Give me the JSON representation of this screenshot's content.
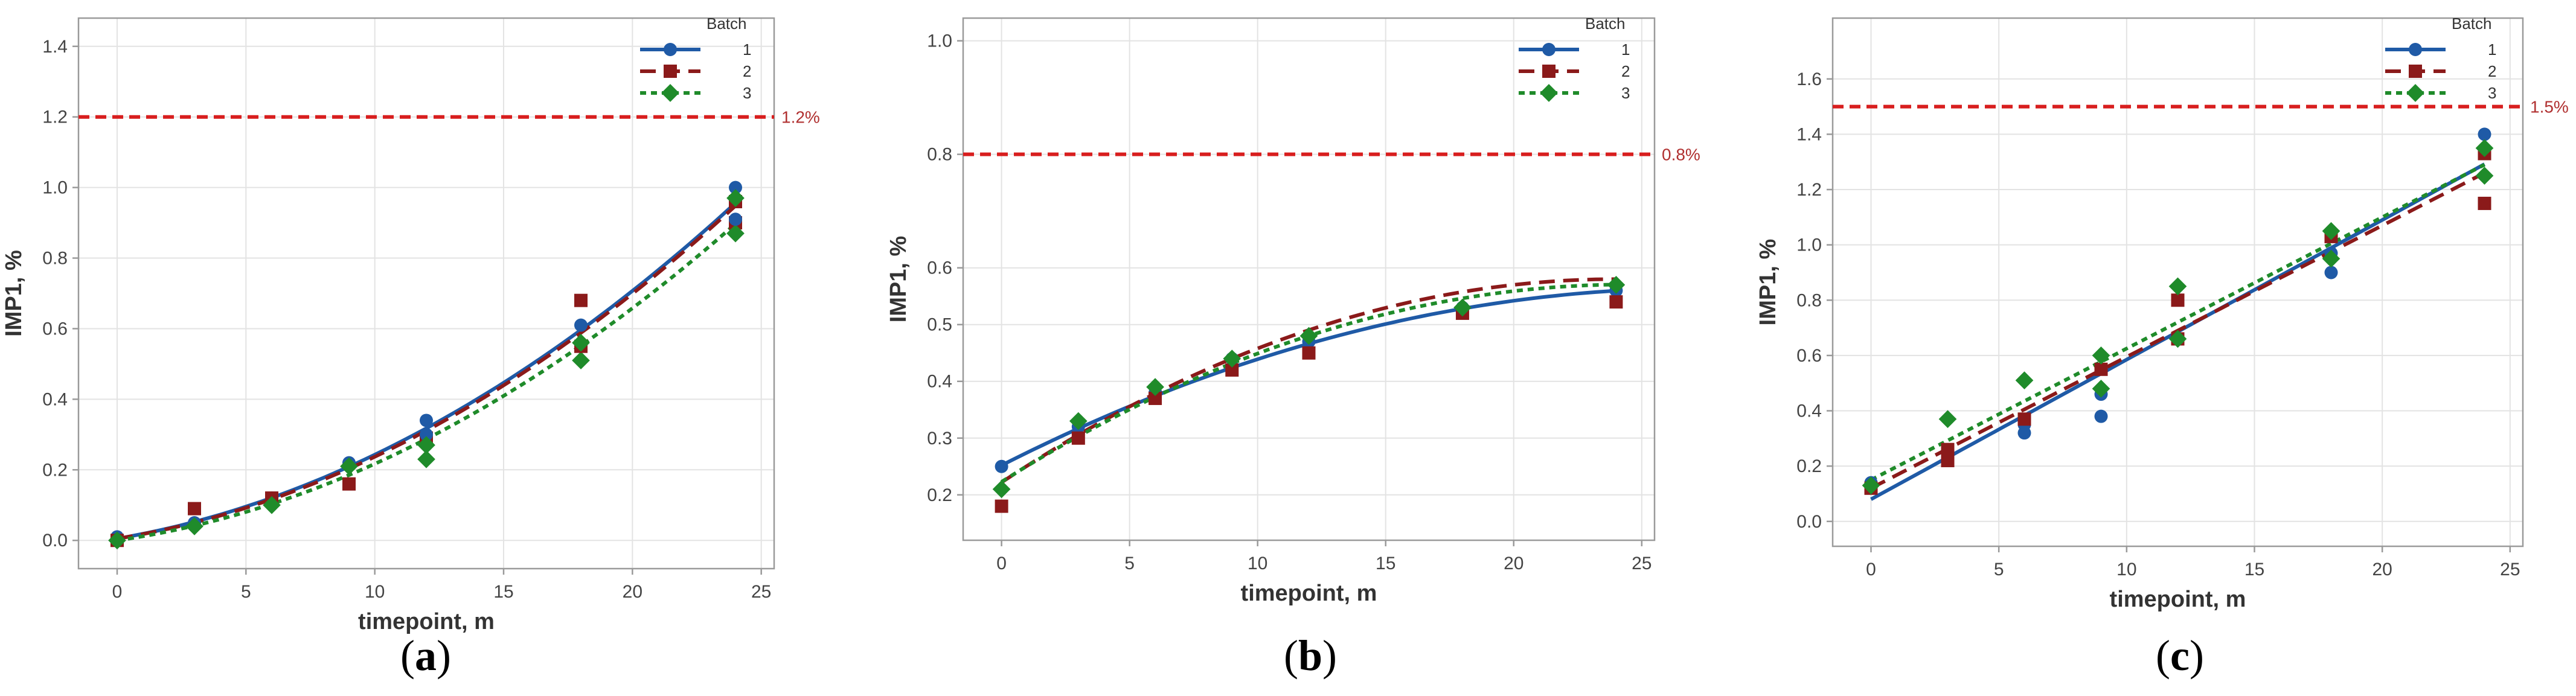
{
  "colors": {
    "series": [
      "#1f5aa6",
      "#8b1a1a",
      "#1f8b2a"
    ],
    "limit": "#d81e1e",
    "limit_label": "#b03030",
    "grid": "#e3e3e3",
    "frame": "#9a9a9a",
    "axis_text": "#444444"
  },
  "chart_data": [
    {
      "id": "a",
      "type": "scatter",
      "caption": "a",
      "xlabel": "timepoint, m",
      "ylabel": "IMP1, %",
      "xlim": [
        -1.5,
        25.5
      ],
      "ylim": [
        -0.08,
        1.48
      ],
      "xticks": [
        0,
        5,
        10,
        15,
        20,
        25
      ],
      "xtick_labels": [
        "0",
        "5",
        "10",
        "15",
        "20",
        "25"
      ],
      "yticks": [
        0.0,
        0.2,
        0.4,
        0.6,
        0.8,
        1.0,
        1.2,
        1.4
      ],
      "ytick_labels": [
        "0.0",
        "0.2",
        "0.4",
        "0.6",
        "0.8",
        "1.0",
        "1.2",
        "1.4"
      ],
      "limit": {
        "value": 1.2,
        "label": "1.2%"
      },
      "legend": {
        "title": "Batch",
        "position": "top-right"
      },
      "fit": "quadratic",
      "series": [
        {
          "name": "1",
          "marker": "circle",
          "line": "solid",
          "x": [
            0,
            3,
            6,
            9,
            12,
            18,
            24
          ],
          "y": [
            0.01,
            0.05,
            0.12,
            0.22,
            0.34,
            0.61,
            1.0
          ],
          "fit_coef": [
            0.005,
            0.0125,
            0.00113
          ]
        },
        {
          "name": "2",
          "marker": "square",
          "line": "dashed",
          "x": [
            0,
            3,
            6,
            9,
            12,
            18,
            24
          ],
          "y": [
            0.0,
            0.09,
            0.12,
            0.16,
            0.29,
            0.68,
            0.9
          ],
          "fit_coef": [
            0.005,
            0.0117,
            0.00115
          ]
        },
        {
          "name": "3",
          "marker": "diamond",
          "line": "dotted",
          "x": [
            0,
            3,
            6,
            9,
            12,
            18,
            24
          ],
          "y": [
            0.0,
            0.04,
            0.1,
            0.21,
            0.23,
            0.51,
            0.87
          ],
          "fit_coef": [
            0.0,
            0.0105,
            0.00112
          ]
        },
        {
          "name": "1",
          "marker": "circle",
          "line": "none",
          "x": [
            12,
            24
          ],
          "y": [
            0.3,
            0.91
          ]
        },
        {
          "name": "2",
          "marker": "square",
          "line": "none",
          "x": [
            18,
            24
          ],
          "y": [
            0.55,
            0.96
          ]
        },
        {
          "name": "3",
          "marker": "diamond",
          "line": "none",
          "x": [
            12,
            18,
            24
          ],
          "y": [
            0.27,
            0.56,
            0.97
          ]
        }
      ]
    },
    {
      "id": "b",
      "type": "scatter",
      "caption": "b",
      "xlabel": "timepoint, m",
      "ylabel": "IMP1, %",
      "xlim": [
        -1.5,
        25.5
      ],
      "ylim": [
        0.12,
        1.04
      ],
      "xticks": [
        0,
        5,
        10,
        15,
        20,
        25
      ],
      "xtick_labels": [
        "0",
        "5",
        "10",
        "15",
        "20",
        "25"
      ],
      "yticks": [
        0.2,
        0.3,
        0.4,
        0.5,
        0.6,
        0.8,
        1.0
      ],
      "ytick_labels": [
        "0.2",
        "0.3",
        "0.4",
        "0.5",
        "0.6",
        "0.8",
        "1.0"
      ],
      "ytick_pos": [
        0.2,
        0.3,
        0.4,
        0.5,
        0.6,
        0.8,
        1.0
      ],
      "limit": {
        "value": 0.8,
        "label": "0.8%"
      },
      "legend": {
        "title": "Batch",
        "position": "top-right"
      },
      "fit": "quadratic",
      "series": [
        {
          "name": "1",
          "marker": "circle",
          "line": "solid",
          "x": [
            0,
            3,
            6,
            9,
            12,
            18,
            24
          ],
          "y": [
            0.25,
            0.32,
            0.38,
            0.44,
            0.47,
            0.53,
            0.56
          ],
          "fit_coef": [
            0.252,
            0.0229,
            -0.00042
          ]
        },
        {
          "name": "2",
          "marker": "square",
          "line": "dashed",
          "x": [
            0,
            3,
            6,
            9,
            12,
            18,
            24
          ],
          "y": [
            0.18,
            0.3,
            0.37,
            0.42,
            0.45,
            0.52,
            0.54
          ],
          "fit_coef": [
            0.222,
            0.0298,
            -0.00062
          ]
        },
        {
          "name": "3",
          "marker": "diamond",
          "line": "dotted",
          "x": [
            0,
            3,
            6,
            9,
            12,
            18,
            24
          ],
          "y": [
            0.21,
            0.33,
            0.39,
            0.44,
            0.48,
            0.53,
            0.57
          ],
          "fit_coef": [
            0.223,
            0.0284,
            -0.00058
          ]
        }
      ]
    },
    {
      "id": "c",
      "type": "scatter",
      "caption": "c",
      "xlabel": "timepoint, m",
      "ylabel": "IMP1, %",
      "xlim": [
        -1.5,
        25.5
      ],
      "ylim": [
        -0.09,
        1.82
      ],
      "xticks": [
        0,
        5,
        10,
        15,
        20,
        25
      ],
      "xtick_labels": [
        "0",
        "5",
        "10",
        "15",
        "20",
        "25"
      ],
      "yticks": [
        0.0,
        0.2,
        0.4,
        0.6,
        0.8,
        1.0,
        1.2,
        1.4,
        1.6
      ],
      "ytick_labels": [
        "0.0",
        "0.2",
        "0.4",
        "0.6",
        "0.8",
        "1.0",
        "1.2",
        "1.4",
        "1.6"
      ],
      "limit": {
        "value": 1.5,
        "label": "1.5%"
      },
      "legend": {
        "title": "Batch",
        "position": "top-right"
      },
      "fit": "linear",
      "series": [
        {
          "name": "1",
          "marker": "circle",
          "line": "solid",
          "x": [
            0,
            3,
            6,
            6,
            9,
            9,
            12,
            18,
            18,
            24
          ],
          "y": [
            0.14,
            0.23,
            0.32,
            0.35,
            0.38,
            0.46,
            0.66,
            0.9,
            0.97,
            1.4
          ],
          "fit_coef": [
            0.08,
            0.0505
          ]
        },
        {
          "name": "2",
          "marker": "square",
          "line": "dashed",
          "x": [
            0,
            3,
            3,
            6,
            9,
            12,
            12,
            18,
            24,
            24
          ],
          "y": [
            0.12,
            0.22,
            0.26,
            0.37,
            0.55,
            0.8,
            0.66,
            1.03,
            1.15,
            1.33
          ],
          "fit_coef": [
            0.12,
            0.0475
          ]
        },
        {
          "name": "3",
          "marker": "diamond",
          "line": "dotted",
          "x": [
            0,
            3,
            6,
            9,
            9,
            12,
            12,
            18,
            18,
            24,
            24
          ],
          "y": [
            0.13,
            0.37,
            0.51,
            0.6,
            0.48,
            0.85,
            0.66,
            1.05,
            0.95,
            1.25,
            1.35
          ],
          "fit_coef": [
            0.15,
            0.0475
          ]
        }
      ]
    }
  ]
}
